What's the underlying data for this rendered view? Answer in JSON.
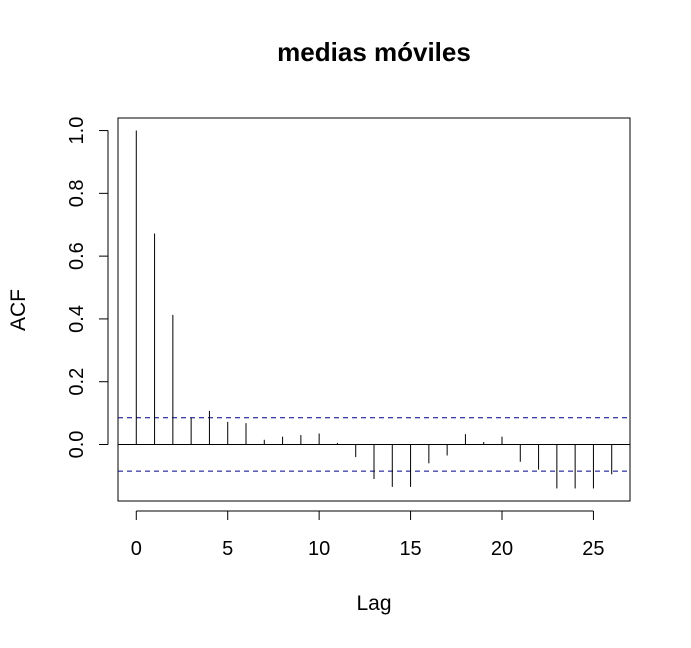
{
  "chart_data": {
    "type": "bar",
    "title": "medias móviles",
    "xlabel": "Lag",
    "ylabel": "ACF",
    "xlim": [
      -1.0,
      27.0
    ],
    "ylim": [
      -0.18,
      1.04
    ],
    "x_ticks": [
      "0",
      "5",
      "10",
      "15",
      "20",
      "25"
    ],
    "y_ticks": [
      "0.0",
      "0.2",
      "0.4",
      "0.6",
      "0.8",
      "1.0"
    ],
    "confidence_band": 0.085,
    "band_color": "#00008B",
    "x": [
      0,
      1,
      2,
      3,
      4,
      5,
      6,
      7,
      8,
      9,
      10,
      11,
      12,
      13,
      14,
      15,
      16,
      17,
      18,
      19,
      20,
      21,
      22,
      23,
      24,
      25,
      26
    ],
    "values": [
      1.0,
      0.672,
      0.413,
      0.085,
      0.107,
      0.072,
      0.068,
      0.015,
      0.025,
      0.03,
      0.035,
      0.005,
      -0.04,
      -0.11,
      -0.135,
      -0.135,
      -0.06,
      -0.035,
      0.033,
      0.008,
      0.025,
      -0.055,
      -0.08,
      -0.14,
      -0.14,
      -0.14,
      -0.095
    ]
  }
}
